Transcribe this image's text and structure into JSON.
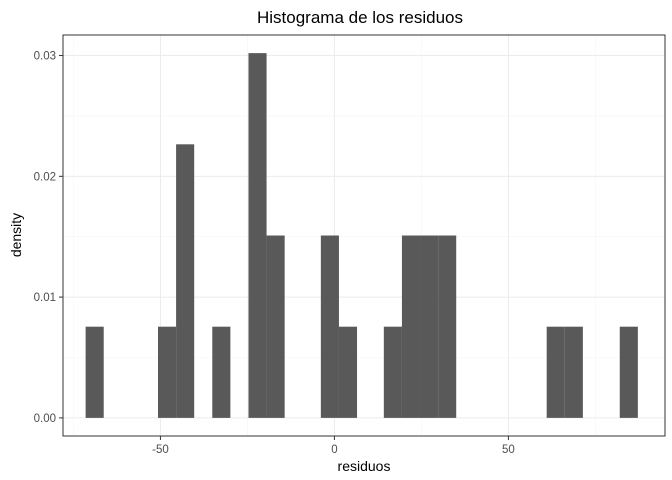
{
  "chart_data": {
    "type": "bar",
    "title": "Histograma de los residuos",
    "xlabel": "residuos",
    "ylabel": "density",
    "bin_width": 5.2,
    "bins": [
      {
        "x0": -71.5,
        "x1": -66.3,
        "density": 0.00755
      },
      {
        "x0": -50.7,
        "x1": -45.5,
        "density": 0.00755
      },
      {
        "x0": -45.5,
        "x1": -40.3,
        "density": 0.02265
      },
      {
        "x0": -35.1,
        "x1": -29.9,
        "density": 0.00755
      },
      {
        "x0": -24.7,
        "x1": -19.5,
        "density": 0.0302
      },
      {
        "x0": -19.5,
        "x1": -14.3,
        "density": 0.0151
      },
      {
        "x0": -3.9,
        "x1": 1.3,
        "density": 0.0151
      },
      {
        "x0": 1.3,
        "x1": 6.5,
        "density": 0.00755
      },
      {
        "x0": 14.2,
        "x1": 19.4,
        "density": 0.00755
      },
      {
        "x0": 19.4,
        "x1": 24.6,
        "density": 0.0151
      },
      {
        "x0": 24.6,
        "x1": 29.8,
        "density": 0.0151
      },
      {
        "x0": 29.8,
        "x1": 35.0,
        "density": 0.0151
      },
      {
        "x0": 61.0,
        "x1": 66.2,
        "density": 0.00755
      },
      {
        "x0": 66.2,
        "x1": 71.4,
        "density": 0.00755
      },
      {
        "x0": 82.0,
        "x1": 87.2,
        "density": 0.00755
      }
    ],
    "xlim": [
      -78,
      95
    ],
    "ylim": [
      -0.0015,
      0.0317
    ],
    "xticks": [
      {
        "value": -50,
        "label": "-50"
      },
      {
        "value": 0,
        "label": "0"
      },
      {
        "value": 50,
        "label": "50"
      }
    ],
    "yticks": [
      {
        "value": 0.0,
        "label": "0.00"
      },
      {
        "value": 0.01,
        "label": "0.01"
      },
      {
        "value": 0.02,
        "label": "0.02"
      },
      {
        "value": 0.03,
        "label": "0.03"
      }
    ],
    "grid": true,
    "bar_color": "#595959"
  }
}
